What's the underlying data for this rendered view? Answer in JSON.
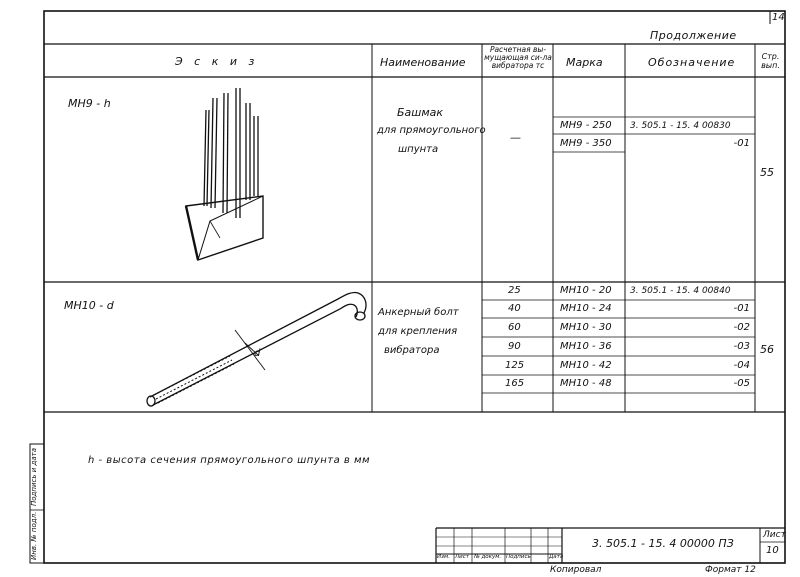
{
  "sheet_corner_number": "14",
  "continuation_label": "Продолжение",
  "columns": {
    "sketch": "Э с к и з",
    "name": "Наименование",
    "force": "Расчетная вы-мущающая си-ла вибратора тс",
    "mark": "Марка",
    "designation": "Обозначение",
    "page": "Стр. вып."
  },
  "rows": [
    {
      "sketch_label": "МН9 - h",
      "name_lines": [
        "Башмак",
        "для прямоугольного",
        "шпунта"
      ],
      "force": "—",
      "page": "55",
      "items": [
        {
          "mark": "МН9 - 250",
          "designation": "3. 505.1 - 15. 4 00830"
        },
        {
          "mark": "МН9 - 350",
          "designation": "-01"
        }
      ]
    },
    {
      "sketch_label": "МН10 - d",
      "dimension_label": "d",
      "name_lines": [
        "Анкерный болт",
        "для крепления",
        "вибратора"
      ],
      "page": "56",
      "items": [
        {
          "force": "25",
          "mark": "МН10 - 20",
          "designation": "3. 505.1 - 15. 4 00840"
        },
        {
          "force": "40",
          "mark": "МН10 - 24",
          "designation": "-01"
        },
        {
          "force": "60",
          "mark": "МН10 - 30",
          "designation": "-02"
        },
        {
          "force": "90",
          "mark": "МН10 - 36",
          "designation": "-03"
        },
        {
          "force": "125",
          "mark": "МН10 - 42",
          "designation": "-04"
        },
        {
          "force": "165",
          "mark": "МН10 - 48",
          "designation": "-05"
        }
      ]
    }
  ],
  "note": "h - высота сечения прямоугольного шпунта в мм",
  "side_stamp": [
    "Инв. № подл.",
    "Подпись и дата"
  ],
  "title_block": {
    "code": "3. 505.1 - 15. 4  00000 ПЗ",
    "sheet_label": "Лист",
    "sheet_number": "10",
    "headers": [
      "Изм.",
      "Лист",
      "№ докум.",
      "Подпись",
      "Дата"
    ],
    "copied": "Копировал",
    "format": "Формат 12"
  }
}
